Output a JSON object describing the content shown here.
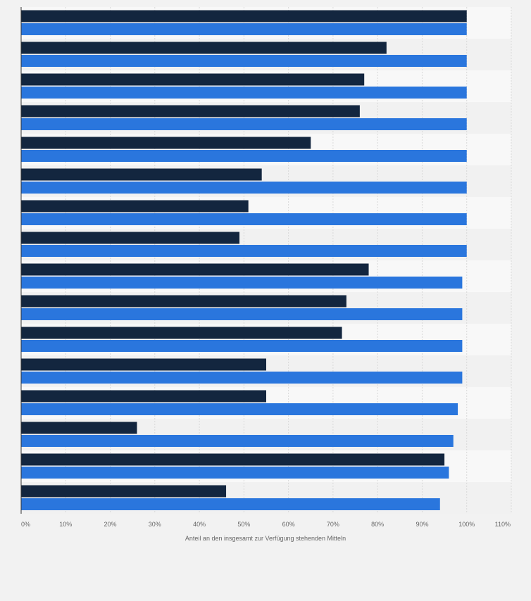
{
  "chart_data": {
    "type": "bar",
    "orientation": "horizontal",
    "categories": [
      "",
      "",
      "",
      "",
      "",
      "",
      "",
      "",
      "",
      "",
      "",
      "",
      "",
      "",
      "",
      ""
    ],
    "series": [
      {
        "color": "#13263f",
        "values": [
          100,
          82,
          77,
          76,
          65,
          54,
          51,
          49,
          78,
          73,
          72,
          55,
          55,
          26,
          95,
          46
        ]
      },
      {
        "color": "#2a76dd",
        "values": [
          100,
          100,
          100,
          100,
          100,
          100,
          100,
          100,
          99,
          99,
          99,
          99,
          98,
          97,
          96,
          94
        ]
      }
    ],
    "xlabel": "Anteil an den insgesamt zur Verfügung stehenden Mitteln",
    "ylabel": "",
    "xlim": [
      0,
      110
    ],
    "xticks": [
      "0%",
      "10%",
      "20%",
      "30%",
      "40%",
      "50%",
      "60%",
      "70%",
      "80%",
      "90%",
      "100%",
      "110%"
    ],
    "grid": true,
    "legend": "none"
  }
}
